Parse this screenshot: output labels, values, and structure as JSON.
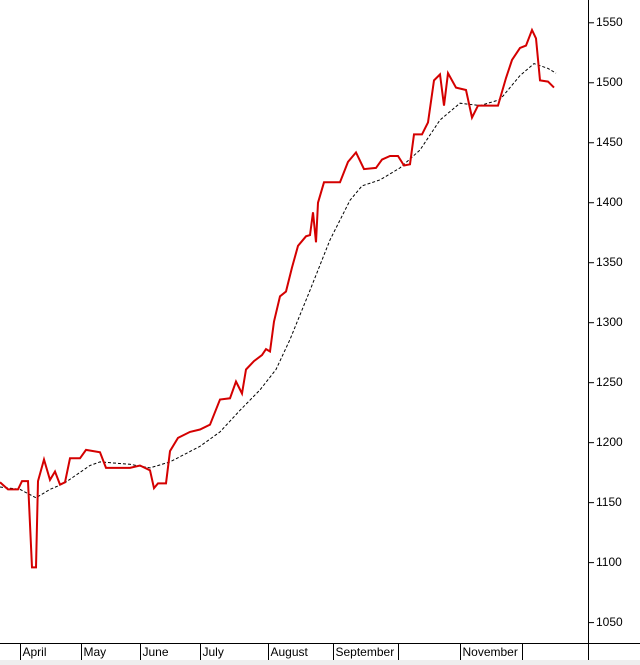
{
  "chart_data": {
    "type": "line",
    "xlim": [
      0,
      294
    ],
    "ylim": [
      1033,
      1569
    ],
    "xticks": [
      {
        "value": 10,
        "label": "April"
      },
      {
        "value": 40.5,
        "label": "May"
      },
      {
        "value": 70,
        "label": "June"
      },
      {
        "value": 100,
        "label": "July"
      },
      {
        "value": 134,
        "label": "August"
      },
      {
        "value": 166.5,
        "label": "September"
      },
      {
        "value": 199,
        "label": null
      },
      {
        "value": 230,
        "label": "November"
      },
      {
        "value": 261,
        "label": null
      }
    ],
    "yticks": [
      1050,
      1100,
      1150,
      1200,
      1250,
      1300,
      1350,
      1400,
      1450,
      1500,
      1550
    ],
    "series": [
      {
        "color": "#d40000",
        "dash": false,
        "x": [
          0,
          4,
          9,
          11,
          14,
          16,
          18,
          19,
          22,
          25,
          27.5,
          30,
          32.5,
          35,
          40,
          43,
          50,
          53,
          65,
          70,
          75,
          77,
          79,
          83,
          85,
          89,
          95,
          100,
          105,
          110,
          115,
          118,
          121,
          123,
          127,
          131,
          133,
          135,
          137,
          140,
          143,
          146,
          149,
          153,
          155,
          156.5,
          158,
          159,
          162,
          170,
          174,
          178,
          182,
          188,
          191,
          195,
          199,
          202,
          205,
          207,
          211,
          214,
          217,
          220,
          222,
          224,
          228,
          233,
          236,
          239,
          249,
          253,
          256,
          260,
          263,
          266,
          268,
          270,
          274,
          277
        ],
        "values": [
          1167,
          1161,
          1161,
          1168,
          1168,
          1096,
          1096,
          1168,
          1186,
          1169,
          1176,
          1165,
          1167,
          1187,
          1187,
          1194,
          1192,
          1179,
          1179,
          1181,
          1177,
          1162,
          1166,
          1166,
          1193,
          1204,
          1209,
          1211,
          1215,
          1236,
          1237,
          1251,
          1241,
          1261,
          1268,
          1273,
          1278,
          1276,
          1301,
          1322,
          1326,
          1346,
          1364,
          1372,
          1373,
          1392,
          1367,
          1400,
          1417,
          1417,
          1434,
          1442,
          1428,
          1429,
          1436,
          1439,
          1439,
          1431,
          1432,
          1457,
          1457,
          1467,
          1502,
          1507,
          1481,
          1508,
          1496,
          1494,
          1471,
          1481,
          1481,
          1504,
          1519,
          1529,
          1531,
          1544,
          1537,
          1502,
          1501,
          1496
        ]
      },
      {
        "color": "#000000",
        "dash": true,
        "x": [
          0,
          10,
          18,
          25,
          32,
          45,
          50,
          65,
          75,
          85,
          100,
          110,
          120,
          130,
          138,
          145,
          155,
          165,
          175,
          181,
          190,
          200,
          210,
          220,
          230,
          240,
          250,
          260,
          267,
          274,
          278
        ],
        "values": [
          1163,
          1161,
          1154,
          1161,
          1166,
          1181,
          1184,
          1182,
          1179,
          1184,
          1197,
          1209,
          1227,
          1244,
          1261,
          1286,
          1327,
          1369,
          1402,
          1414,
          1419,
          1429,
          1444,
          1469,
          1483,
          1481,
          1486,
          1506,
          1516,
          1512,
          1508
        ]
      }
    ]
  }
}
